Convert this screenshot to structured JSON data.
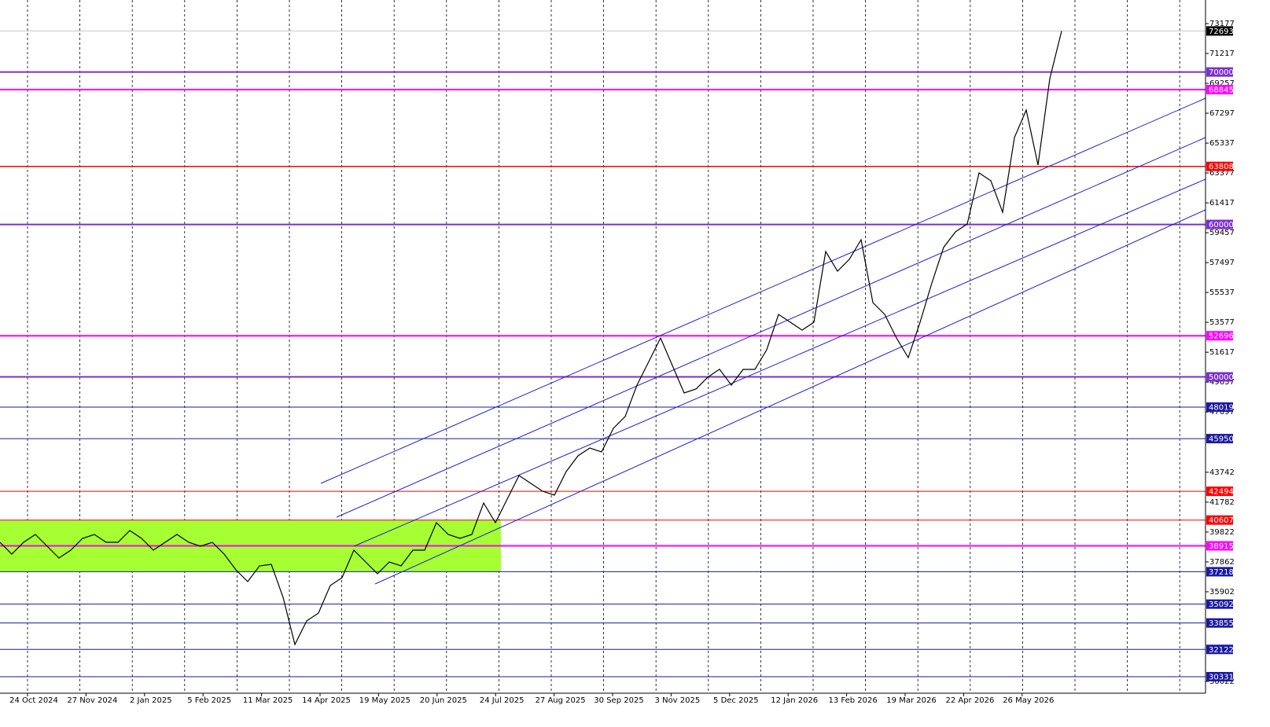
{
  "chart_data": {
    "type": "line",
    "values": [
      39148,
      38375,
      39148,
      39664,
      38890,
      38117,
      38632,
      39406,
      39664,
      39148,
      39148,
      39921,
      39406,
      38632,
      39148,
      39664,
      39148,
      38890,
      39148,
      38375,
      37343,
      36570,
      37600,
      37703,
      35540,
      32446,
      33993,
      34509,
      36313,
      36828,
      38632,
      37859,
      37085,
      37859,
      37600,
      38632,
      38632,
      40437,
      39664,
      39406,
      39664,
      41726,
      40437,
      41984,
      43531,
      43015,
      42500,
      42242,
      43789,
      44820,
      45336,
      45078,
      46624,
      47400,
      49460,
      51000,
      52554,
      50749,
      48944,
      49200,
      49976,
      50500,
      49460,
      50491,
      50491,
      51780,
      54100,
      53584,
      53069,
      53584,
      58225,
      56936,
      57710,
      59000,
      54874,
      54100,
      52554,
      51265,
      53584,
      56163,
      58500,
      59514,
      60029,
      63380,
      62865,
      60802,
      65701,
      67506,
      63896,
      69568,
      72693
    ],
    "color": "#000000",
    "ylim": [
      29248,
      74724
    ],
    "yticks": [
      73177,
      71217,
      69257,
      67297,
      65337,
      63377,
      61417,
      59457,
      57497,
      55537,
      53577,
      51617,
      49657,
      47697,
      43742,
      41782,
      39822,
      37862,
      35902,
      30022
    ],
    "x_labels": [
      "24 Oct 2024",
      "27 Nov 2024",
      "2 Jan 2025",
      "5 Feb 2025",
      "11 Mar 2025",
      "14 Apr 2025",
      "19 May 2025",
      "20 Jun 2025",
      "24 Jul 2025",
      "27 Aug 2025",
      "30 Sep 2025",
      "3 Nov 2025",
      "5 Dec 2025",
      "12 Jan 2026",
      "13 Feb 2026",
      "19 Mar 2026",
      "22 Apr 2026",
      "26 May 2026"
    ],
    "levels": [
      {
        "value": 72693,
        "color": "#000000",
        "width": 1
      },
      {
        "value": 70000,
        "color": "#7b2fd0",
        "width": 2
      },
      {
        "value": 68845,
        "color": "#ff00ff",
        "width": 2
      },
      {
        "value": 63808,
        "color": "#ff0000",
        "width": 1.5
      },
      {
        "value": 60000,
        "color": "#7b2fd0",
        "width": 2
      },
      {
        "value": 52696,
        "color": "#ff00ff",
        "width": 2
      },
      {
        "value": 50000,
        "color": "#7b2fd0",
        "width": 2
      },
      {
        "value": 48019,
        "color": "#1a1aa0",
        "width": 1
      },
      {
        "value": 45950,
        "color": "#1a1aa0",
        "width": 1
      },
      {
        "value": 42494,
        "color": "#ff0000",
        "width": 1
      },
      {
        "value": 40607,
        "color": "#ff0000",
        "width": 1
      },
      {
        "value": 38915,
        "color": "#ff00ff",
        "width": 2
      },
      {
        "value": 37218,
        "color": "#1a1aa0",
        "width": 1
      },
      {
        "value": 35092,
        "color": "#1a1aa0",
        "width": 1
      },
      {
        "value": 33855,
        "color": "#1a1aa0",
        "width": 1
      },
      {
        "value": 32122,
        "color": "#1a1aa0",
        "width": 1
      },
      {
        "value": 30331,
        "color": "#1a1aa0",
        "width": 1
      }
    ],
    "zone_color": "#a6ff33"
  }
}
